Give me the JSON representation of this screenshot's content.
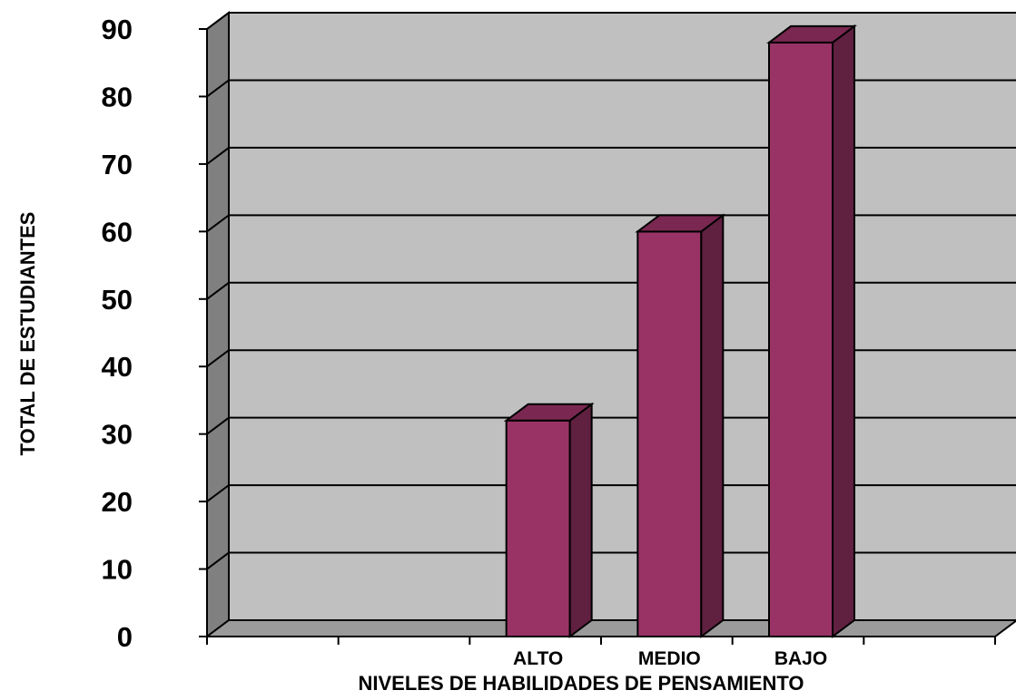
{
  "chart_data": {
    "type": "bar",
    "style": "3d-column",
    "categories": [
      "",
      "",
      "ALTO",
      "MEDIO",
      "BAJO",
      ""
    ],
    "values": [
      null,
      null,
      32,
      60,
      88,
      null
    ],
    "xlabel": "NIVELES DE HABILIDADES DE PENSAMIENTO",
    "ylabel": "TOTAL  DE  ESTUDIANTES",
    "ylim": [
      0,
      90
    ],
    "yticks": [
      "0",
      "10",
      "20",
      "30",
      "40",
      "50",
      "60",
      "70",
      "80",
      "90"
    ],
    "grid": true,
    "legend": "none",
    "colors": {
      "bar_front": "#993366",
      "bar_top": "#7a2851",
      "bar_side": "#602040",
      "back_wall": "#c0c0c0",
      "side_wall": "#808080",
      "floor": "#9a9a9a"
    }
  }
}
